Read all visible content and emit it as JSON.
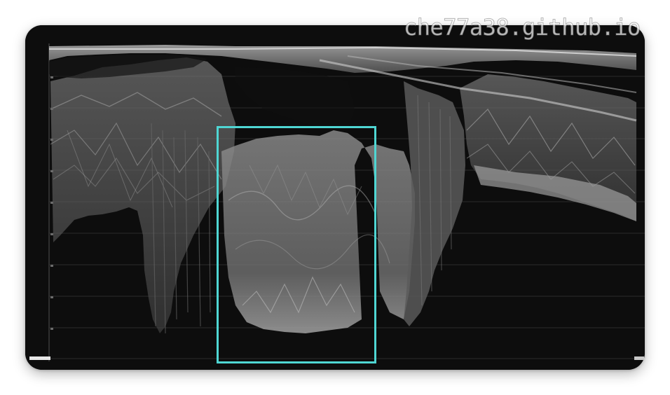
{
  "watermark": {
    "text": "che77a38.github.io"
  },
  "image": {
    "subject": "video waveform scope",
    "highlight_color": "#4fd6d3"
  }
}
